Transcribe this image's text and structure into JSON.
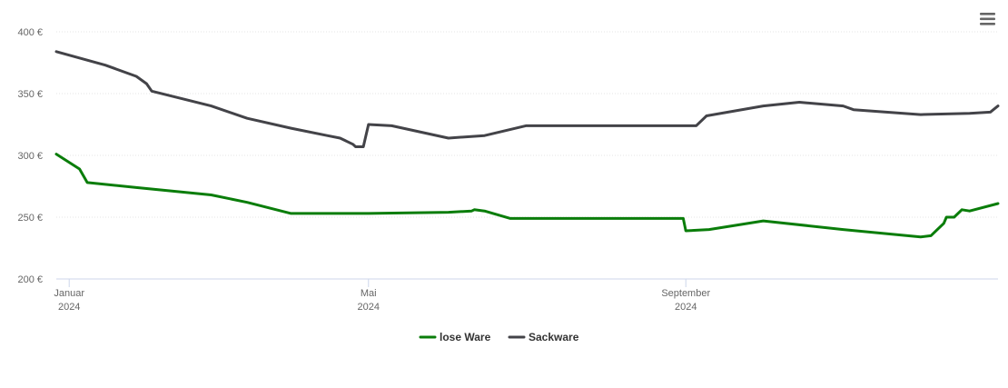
{
  "chart_data": {
    "type": "line",
    "title": "",
    "xlabel": "",
    "ylabel": "",
    "ylim": [
      200,
      400
    ],
    "y_ticks": [
      "200 €",
      "250 €",
      "300 €",
      "350 €",
      "400 €"
    ],
    "y_tick_values": [
      200,
      250,
      300,
      350,
      400
    ],
    "x_range": [
      "2024-01-01",
      "2024-12-31"
    ],
    "x_ticks": [
      {
        "date": "2024-01-06",
        "month": "Januar",
        "year": "2024"
      },
      {
        "date": "2024-05-01",
        "month": "Mai",
        "year": "2024"
      },
      {
        "date": "2024-09-01",
        "month": "September",
        "year": "2024"
      }
    ],
    "grid": true,
    "legend_position": "bottom-center",
    "series": [
      {
        "name": "lose Ware",
        "color": "#0a7d0a",
        "points": [
          [
            "2024-01-01",
            301
          ],
          [
            "2024-01-10",
            289
          ],
          [
            "2024-01-13",
            278
          ],
          [
            "2024-02-01",
            274
          ],
          [
            "2024-03-01",
            268
          ],
          [
            "2024-03-15",
            262
          ],
          [
            "2024-04-01",
            253
          ],
          [
            "2024-05-01",
            253
          ],
          [
            "2024-06-01",
            254
          ],
          [
            "2024-06-10",
            255
          ],
          [
            "2024-06-11",
            256
          ],
          [
            "2024-06-15",
            255
          ],
          [
            "2024-06-25",
            249
          ],
          [
            "2024-08-01",
            249
          ],
          [
            "2024-08-31",
            249
          ],
          [
            "2024-09-01",
            239
          ],
          [
            "2024-09-10",
            240
          ],
          [
            "2024-10-01",
            247
          ],
          [
            "2024-11-01",
            240
          ],
          [
            "2024-12-01",
            234
          ],
          [
            "2024-12-05",
            235
          ],
          [
            "2024-12-10",
            245
          ],
          [
            "2024-12-11",
            250
          ],
          [
            "2024-12-14",
            250
          ],
          [
            "2024-12-17",
            256
          ],
          [
            "2024-12-20",
            255
          ],
          [
            "2024-12-31",
            261
          ]
        ]
      },
      {
        "name": "Sackware",
        "color": "#434348",
        "points": [
          [
            "2024-01-01",
            384
          ],
          [
            "2024-01-20",
            373
          ],
          [
            "2024-02-01",
            364
          ],
          [
            "2024-02-05",
            358
          ],
          [
            "2024-02-07",
            352
          ],
          [
            "2024-03-01",
            340
          ],
          [
            "2024-03-15",
            330
          ],
          [
            "2024-04-01",
            322
          ],
          [
            "2024-04-15",
            316
          ],
          [
            "2024-04-20",
            314
          ],
          [
            "2024-04-25",
            309
          ],
          [
            "2024-04-26",
            307
          ],
          [
            "2024-04-29",
            307
          ],
          [
            "2024-05-01",
            325
          ],
          [
            "2024-05-10",
            324
          ],
          [
            "2024-06-01",
            314
          ],
          [
            "2024-06-15",
            316
          ],
          [
            "2024-07-01",
            324
          ],
          [
            "2024-07-15",
            324
          ],
          [
            "2024-09-01",
            324
          ],
          [
            "2024-09-05",
            324
          ],
          [
            "2024-09-09",
            332
          ],
          [
            "2024-10-01",
            340
          ],
          [
            "2024-10-15",
            343
          ],
          [
            "2024-11-01",
            340
          ],
          [
            "2024-11-05",
            337
          ],
          [
            "2024-12-01",
            333
          ],
          [
            "2024-12-20",
            334
          ],
          [
            "2024-12-28",
            335
          ],
          [
            "2024-12-31",
            340
          ]
        ]
      }
    ]
  }
}
